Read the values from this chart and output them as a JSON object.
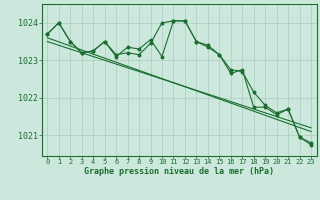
{
  "x": [
    0,
    1,
    2,
    3,
    4,
    5,
    6,
    7,
    8,
    9,
    10,
    11,
    12,
    13,
    14,
    15,
    16,
    17,
    18,
    19,
    20,
    21,
    22,
    23
  ],
  "line1": [
    1023.7,
    1024.0,
    1023.5,
    1023.2,
    1023.25,
    1023.5,
    1023.1,
    1023.35,
    1023.3,
    1023.55,
    1023.1,
    1024.05,
    1024.05,
    1023.5,
    1023.4,
    1023.15,
    1022.65,
    1022.75,
    1021.75,
    1021.75,
    1021.55,
    1021.7,
    1020.95,
    1020.8
  ],
  "line2": [
    1023.7,
    1024.0,
    1023.5,
    1023.2,
    1023.25,
    1023.5,
    1023.15,
    1023.2,
    1023.15,
    1023.45,
    1024.0,
    1024.05,
    1024.05,
    1023.5,
    1023.35,
    1023.15,
    1022.75,
    1022.7,
    1022.15,
    1021.8,
    1021.6,
    1021.7,
    1020.95,
    1020.75
  ],
  "trend1": [
    1023.6,
    1021.1
  ],
  "trend2": [
    1023.5,
    1021.2
  ],
  "background_color": "#cce8dc",
  "grid_color": "#aaccbb",
  "line_color": "#1a6e2e",
  "title": "Graphe pression niveau de la mer (hPa)",
  "ylim": [
    1020.45,
    1024.5
  ],
  "yticks": [
    1021,
    1022,
    1023,
    1024
  ],
  "xlim": [
    -0.5,
    23.5
  ]
}
